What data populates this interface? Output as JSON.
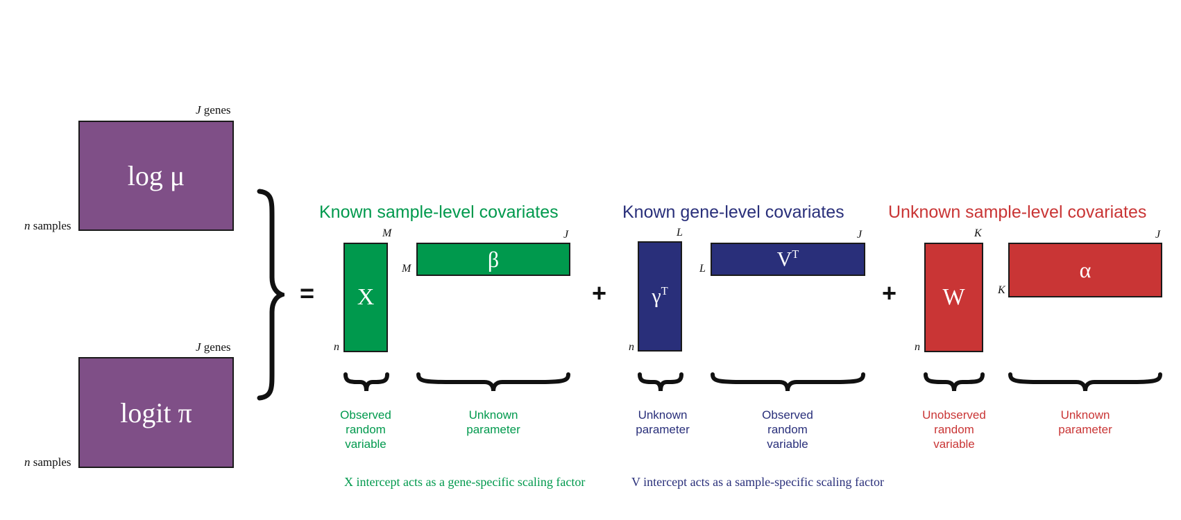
{
  "colors": {
    "purple": "#7f4f87",
    "green": "#00994d",
    "navy": "#292f7a",
    "red": "#c93535"
  },
  "lhs": {
    "top": {
      "label": "log μ",
      "cols_var": "J",
      "cols_word": "genes",
      "rows_var": "n",
      "rows_word": "samples"
    },
    "bottom": {
      "label": "logit π",
      "cols_var": "J",
      "cols_word": "genes",
      "rows_var": "n",
      "rows_word": "samples"
    }
  },
  "operators": {
    "equals": "=",
    "plus1": "+",
    "plus2": "+"
  },
  "groups": {
    "known_sample": {
      "heading": "Known sample-level covariates",
      "left_matrix": {
        "symbol": "X",
        "cols": "M",
        "rows": "n"
      },
      "right_matrix": {
        "symbol": "β",
        "cols": "J",
        "rows": "M"
      },
      "left_desc": [
        "Observed",
        "random",
        "variable"
      ],
      "right_desc": [
        "Unknown",
        "parameter"
      ],
      "note": "X intercept acts as a gene-specific scaling factor"
    },
    "known_gene": {
      "heading": "Known gene-level covariates",
      "left_matrix": {
        "symbol": "γ",
        "sup": "T",
        "cols": "L",
        "rows": "n"
      },
      "right_matrix": {
        "symbol": "V",
        "sup": "T",
        "cols": "J",
        "rows": "L"
      },
      "left_desc": [
        "Unknown",
        "parameter"
      ],
      "right_desc": [
        "Observed",
        "random",
        "variable"
      ],
      "note": "V intercept acts as a sample-specific scaling factor"
    },
    "unknown_sample": {
      "heading": "Unknown sample-level covariates",
      "left_matrix": {
        "symbol": "W",
        "cols": "K",
        "rows": "n"
      },
      "right_matrix": {
        "symbol": "α",
        "cols": "J",
        "rows": "K"
      },
      "left_desc": [
        "Unobserved",
        "random",
        "variable"
      ],
      "right_desc": [
        "Unknown",
        "parameter"
      ]
    }
  }
}
